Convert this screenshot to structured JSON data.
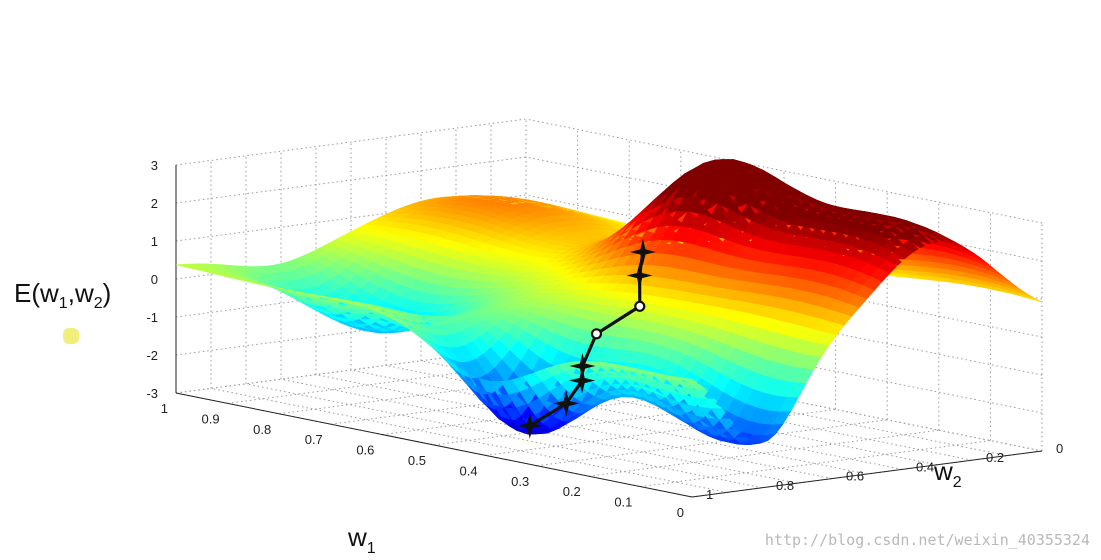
{
  "chart_data": {
    "type": "surface3d",
    "title": "",
    "zlabel_base": "E",
    "zlabel_vars": [
      "w",
      "1",
      "w",
      "2"
    ],
    "xlabel_base": "w",
    "xlabel_sub": "1",
    "ylabel_base": "w",
    "ylabel_sub": "2",
    "xlim": [
      0,
      1
    ],
    "ylim": [
      0,
      1
    ],
    "zlim": [
      -3,
      3
    ],
    "x_ticks": [
      "1",
      "0.9",
      "0.8",
      "0.7",
      "0.6",
      "0.5",
      "0.4",
      "0.3",
      "0.2",
      "0.1",
      "0"
    ],
    "y_ticks": [
      "0",
      "0.2",
      "0.4",
      "0.6",
      "0.8",
      "1"
    ],
    "z_ticks": [
      "3",
      "2",
      "1",
      "0",
      "-1",
      "-2",
      "-3"
    ],
    "colormap": "jet",
    "grid": true,
    "descent_path": [
      {
        "w1": 0.38,
        "w2": 0.42,
        "E": 1.9,
        "marker": "star"
      },
      {
        "w1": 0.4,
        "w2": 0.44,
        "E": 1.2,
        "marker": "star"
      },
      {
        "w1": 0.42,
        "w2": 0.47,
        "E": 0.3,
        "marker": "circle"
      },
      {
        "w1": 0.47,
        "w2": 0.42,
        "E": -0.5,
        "marker": "circle"
      },
      {
        "w1": 0.47,
        "w2": 0.38,
        "E": -1.3,
        "marker": "star"
      },
      {
        "w1": 0.43,
        "w2": 0.32,
        "E": -1.5,
        "marker": "star"
      },
      {
        "w1": 0.42,
        "w2": 0.26,
        "E": -2.0,
        "marker": "star"
      },
      {
        "w1": 0.45,
        "w2": 0.2,
        "E": -2.6,
        "marker": "star"
      }
    ]
  },
  "watermark": "http://blog.csdn.net/weixin_40355324"
}
